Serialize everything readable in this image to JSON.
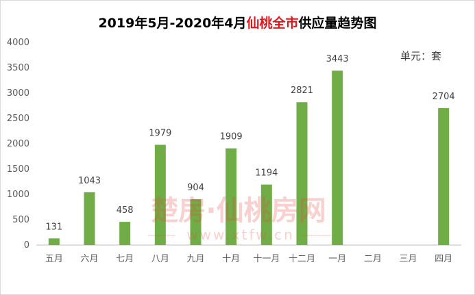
{
  "chart_data": {
    "type": "bar",
    "title_parts": [
      "2019年5月-2020年4月",
      "仙桃全市",
      "供应量趋势图"
    ],
    "unit": "单元：套",
    "categories": [
      "五月",
      "六月",
      "七月",
      "八月",
      "九月",
      "十月",
      "十一月",
      "十二月",
      "一月",
      "二月",
      "三月",
      "四月"
    ],
    "values": [
      131,
      1043,
      458,
      1979,
      904,
      1909,
      1194,
      2821,
      3443,
      null,
      null,
      2704
    ],
    "data_labels": [
      "131",
      "1043",
      "458",
      "1979",
      "904",
      "1909",
      "1194",
      "2821",
      "3443",
      "",
      "",
      "2704"
    ],
    "ylim": [
      0,
      4000
    ],
    "yticks": [
      "0",
      "500",
      "1000",
      "1500",
      "2000",
      "2500",
      "3000",
      "3500",
      "4000"
    ],
    "grid": false,
    "legend": "none",
    "bar_color": "#70ad47"
  },
  "watermark": {
    "line1": "楚房·仙桃房网",
    "line2": "www.xtfw.cn"
  },
  "colors": {
    "title_highlight": "#e0161d",
    "axis": "#bfbfbf"
  }
}
